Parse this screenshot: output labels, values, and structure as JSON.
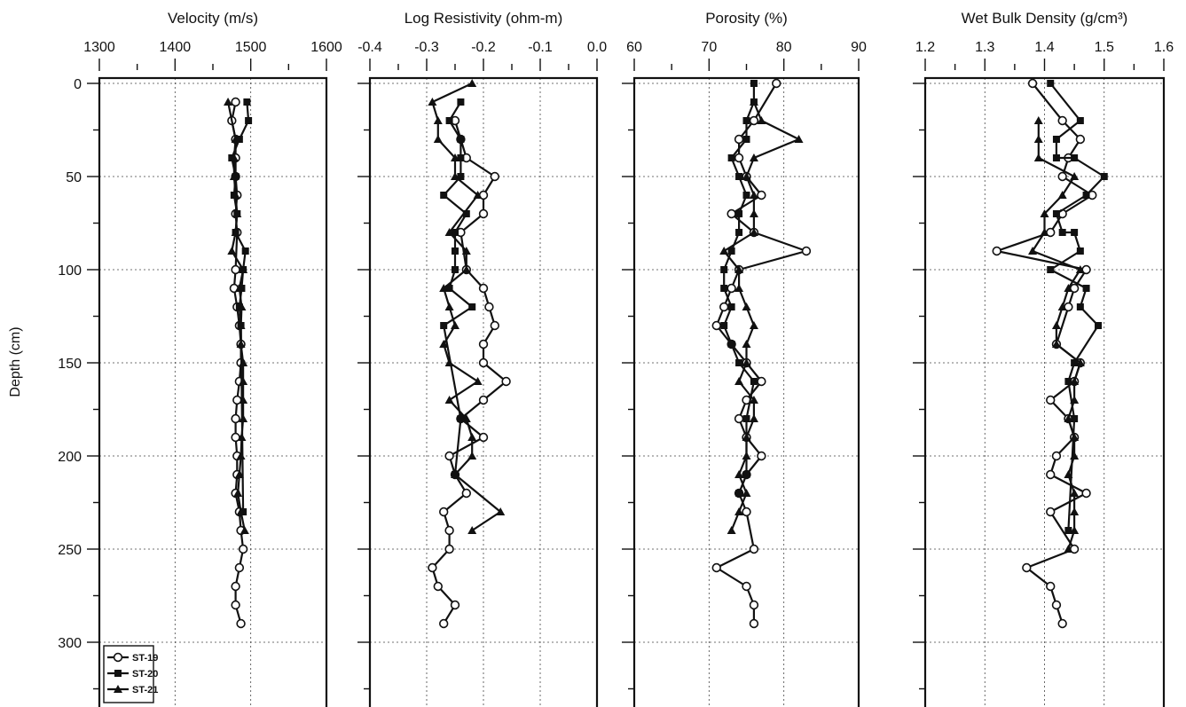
{
  "figure": {
    "y_axis_title": "Depth (cm)",
    "y_ticks": [
      "0",
      "50",
      "100",
      "150",
      "200",
      "250",
      "300"
    ],
    "legend": [
      "ST-19",
      "ST-20",
      "ST-21"
    ]
  },
  "chart_data": [
    {
      "type": "line",
      "title": "Velocity (m/s)",
      "xlabel": "Velocity (m/s)",
      "ylabel": "Depth (cm)",
      "x_ticks": [
        "1300",
        "1400",
        "1500",
        "1600"
      ],
      "xlim": [
        1300,
        1600
      ],
      "ylim": [
        0,
        320
      ],
      "y_inverted": true,
      "grid": true,
      "legend_position": "bottom-left",
      "series": [
        {
          "name": "ST-19",
          "marker": "open-circle",
          "x": [
            1480,
            1475,
            1480,
            1480,
            1480,
            1482,
            1480,
            1482,
            1480,
            1478,
            1482,
            1485,
            1487,
            1487,
            1485,
            1482,
            1480,
            1480,
            1482,
            1482,
            1480,
            1485,
            1487,
            1490,
            1485,
            1480,
            1480,
            1487
          ],
          "y": [
            10,
            20,
            30,
            40,
            50,
            60,
            70,
            80,
            100,
            110,
            120,
            130,
            140,
            150,
            160,
            170,
            180,
            190,
            200,
            210,
            220,
            230,
            240,
            250,
            260,
            270,
            280,
            290
          ]
        },
        {
          "name": "ST-20",
          "marker": "filled-square",
          "x": [
            1495,
            1497,
            1485,
            1475,
            1480,
            1478,
            1482,
            1480,
            1493,
            1490,
            1488,
            1485,
            1487,
            1490
          ],
          "y": [
            10,
            20,
            30,
            40,
            50,
            60,
            70,
            80,
            90,
            100,
            110,
            120,
            130,
            230
          ]
        },
        {
          "name": "ST-21",
          "marker": "filled-triangle",
          "x": [
            1470,
            1480,
            1478,
            1478,
            1480,
            1482,
            1480,
            1475,
            1490,
            1485,
            1488,
            1487,
            1487,
            1490,
            1490,
            1490,
            1490,
            1488,
            1487,
            1485,
            1483,
            1487,
            1492
          ],
          "y": [
            10,
            30,
            40,
            50,
            60,
            70,
            80,
            90,
            100,
            110,
            120,
            130,
            140,
            150,
            160,
            170,
            180,
            190,
            200,
            210,
            220,
            230,
            240
          ]
        }
      ]
    },
    {
      "type": "line",
      "title": "Log Resistivity (ohm-m)",
      "xlabel": "Log Resistivity (ohm-m)",
      "ylabel": "Depth (cm)",
      "x_ticks": [
        "-0.4",
        "-0.3",
        "-0.2",
        "-0.1",
        "0.0"
      ],
      "xlim": [
        -0.4,
        0.0
      ],
      "ylim": [
        0,
        320
      ],
      "y_inverted": true,
      "grid": true,
      "series": [
        {
          "name": "ST-19",
          "marker": "open-circle",
          "x": [
            -0.25,
            -0.24,
            -0.23,
            -0.18,
            -0.2,
            -0.2,
            -0.24,
            -0.23,
            -0.2,
            -0.19,
            -0.18,
            -0.2,
            -0.2,
            -0.16,
            -0.2,
            -0.24,
            -0.2,
            -0.26,
            -0.25,
            -0.23,
            -0.27,
            -0.26,
            -0.26,
            -0.29,
            -0.28,
            -0.25,
            -0.27
          ],
          "y": [
            20,
            30,
            40,
            50,
            60,
            70,
            80,
            100,
            110,
            120,
            130,
            140,
            150,
            160,
            170,
            180,
            190,
            200,
            210,
            220,
            230,
            240,
            250,
            260,
            270,
            280,
            290
          ]
        },
        {
          "name": "ST-20",
          "marker": "filled-square",
          "x": [
            -0.24,
            -0.26,
            -0.24,
            -0.24,
            -0.24,
            -0.27,
            -0.23,
            -0.25,
            -0.25,
            -0.25,
            -0.26,
            -0.22,
            -0.27,
            -0.24,
            -0.25
          ],
          "y": [
            10,
            20,
            30,
            40,
            50,
            60,
            70,
            80,
            90,
            100,
            110,
            120,
            130,
            180,
            210
          ]
        },
        {
          "name": "ST-21",
          "marker": "filled-triangle",
          "x": [
            -0.22,
            -0.29,
            -0.28,
            -0.28,
            -0.25,
            -0.25,
            -0.21,
            -0.26,
            -0.23,
            -0.23,
            -0.27,
            -0.26,
            -0.25,
            -0.27,
            -0.26,
            -0.21,
            -0.26,
            -0.23,
            -0.22,
            -0.22,
            -0.25,
            -0.17,
            -0.22
          ],
          "y": [
            0,
            10,
            20,
            30,
            40,
            50,
            60,
            80,
            90,
            100,
            110,
            120,
            130,
            140,
            150,
            160,
            170,
            180,
            190,
            200,
            210,
            230,
            240
          ]
        }
      ]
    },
    {
      "type": "line",
      "title": "Porosity (%)",
      "xlabel": "Porosity (%)",
      "ylabel": "Depth (cm)",
      "x_ticks": [
        "60",
        "70",
        "80",
        "90"
      ],
      "xlim": [
        60,
        90
      ],
      "ylim": [
        0,
        320
      ],
      "y_inverted": true,
      "grid": true,
      "series": [
        {
          "name": "ST-19",
          "marker": "open-circle",
          "x": [
            79,
            76,
            74,
            74,
            75,
            77,
            73,
            76,
            83,
            74,
            73,
            72,
            71,
            73,
            75,
            77,
            75,
            74,
            75,
            77,
            75,
            74,
            75,
            76,
            71,
            75,
            76,
            76
          ],
          "y": [
            0,
            20,
            30,
            40,
            50,
            60,
            70,
            80,
            90,
            100,
            110,
            120,
            130,
            140,
            150,
            160,
            170,
            180,
            190,
            200,
            210,
            220,
            230,
            250,
            260,
            270,
            280,
            290
          ]
        },
        {
          "name": "ST-20",
          "marker": "filled-square",
          "x": [
            76,
            76,
            75,
            75,
            73,
            74,
            75,
            74,
            74,
            73,
            72,
            72,
            73,
            72,
            73,
            74,
            76,
            75,
            75,
            74
          ],
          "y": [
            0,
            10,
            20,
            30,
            40,
            50,
            60,
            70,
            80,
            90,
            100,
            110,
            120,
            130,
            140,
            150,
            160,
            180,
            210,
            220
          ]
        },
        {
          "name": "ST-21",
          "marker": "filled-triangle",
          "x": [
            76,
            77,
            82,
            76,
            75,
            76,
            76,
            76,
            72,
            74,
            74,
            75,
            76,
            75,
            75,
            74,
            76,
            76,
            75,
            75,
            74,
            75,
            74,
            73
          ],
          "y": [
            10,
            20,
            30,
            40,
            50,
            60,
            70,
            80,
            90,
            100,
            110,
            120,
            130,
            140,
            150,
            160,
            170,
            180,
            190,
            200,
            210,
            220,
            230,
            240
          ]
        }
      ]
    },
    {
      "type": "line",
      "title": "Wet Bulk Density (g/cm³)",
      "xlabel": "Wet Bulk Density (g/cm³)",
      "ylabel": "Depth (cm)",
      "x_ticks": [
        "1.2",
        "1.3",
        "1.4",
        "1.5",
        "1.6"
      ],
      "xlim": [
        1.2,
        1.6
      ],
      "ylim": [
        0,
        320
      ],
      "y_inverted": true,
      "grid": true,
      "series": [
        {
          "name": "ST-19",
          "marker": "open-circle",
          "x": [
            1.38,
            1.43,
            1.46,
            1.44,
            1.43,
            1.48,
            1.43,
            1.41,
            1.32,
            1.47,
            1.45,
            1.44,
            1.42,
            1.46,
            1.45,
            1.41,
            1.44,
            1.45,
            1.42,
            1.41,
            1.47,
            1.41,
            1.45,
            1.37,
            1.41,
            1.42,
            1.43
          ],
          "y": [
            0,
            20,
            30,
            40,
            50,
            60,
            70,
            80,
            90,
            100,
            110,
            120,
            140,
            150,
            160,
            170,
            180,
            190,
            200,
            210,
            220,
            230,
            250,
            260,
            270,
            280,
            290
          ]
        },
        {
          "name": "ST-20",
          "marker": "filled-square",
          "x": [
            1.41,
            1.46,
            1.42,
            1.42,
            1.45,
            1.5,
            1.47,
            1.42,
            1.43,
            1.45,
            1.46,
            1.41,
            1.47,
            1.46,
            1.49,
            1.45,
            1.44,
            1.45,
            1.44
          ],
          "y": [
            0,
            20,
            30,
            40,
            40,
            50,
            60,
            70,
            80,
            80,
            90,
            100,
            110,
            120,
            130,
            150,
            160,
            180,
            240
          ]
        },
        {
          "name": "ST-21",
          "marker": "filled-triangle",
          "x": [
            1.39,
            1.39,
            1.39,
            1.45,
            1.43,
            1.4,
            1.4,
            1.38,
            1.46,
            1.44,
            1.43,
            1.42,
            1.42,
            1.46,
            1.45,
            1.45,
            1.44,
            1.45,
            1.45,
            1.44,
            1.45,
            1.45,
            1.45,
            1.44
          ],
          "y": [
            20,
            30,
            40,
            50,
            60,
            70,
            80,
            90,
            100,
            110,
            120,
            130,
            140,
            150,
            160,
            170,
            180,
            190,
            200,
            210,
            220,
            230,
            240,
            250
          ]
        }
      ]
    }
  ]
}
